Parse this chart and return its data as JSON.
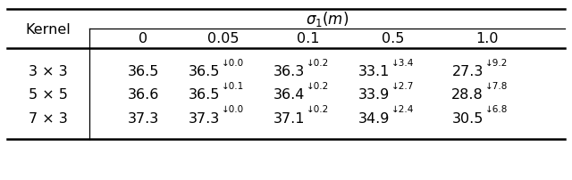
{
  "col_headers": [
    "0",
    "0.05",
    "0.1",
    "0.5",
    "1.0"
  ],
  "row_headers": [
    "3 × 3",
    "5 × 5",
    "7 × 3"
  ],
  "data": [
    [
      "36.5",
      "36.5",
      "36.3",
      "33.1",
      "27.3"
    ],
    [
      "36.6",
      "36.5",
      "36.4",
      "33.9",
      "28.8"
    ],
    [
      "37.3",
      "37.3",
      "37.1",
      "34.9",
      "30.5"
    ]
  ],
  "sup_data": [
    [
      "",
      "↓0.0",
      "↓0.2",
      "↓3.4",
      "↓9.2"
    ],
    [
      "",
      "↓0.1",
      "↓0.2",
      "↓2.7",
      "↓7.8"
    ],
    [
      "",
      "↓0.0",
      "↓0.2",
      "↓2.4",
      "↓6.8"
    ]
  ],
  "bg_color": "#ffffff",
  "line_color": "#000000",
  "font_size": 11.5,
  "sup_font_size": 7.5,
  "sigma_font_size": 12
}
